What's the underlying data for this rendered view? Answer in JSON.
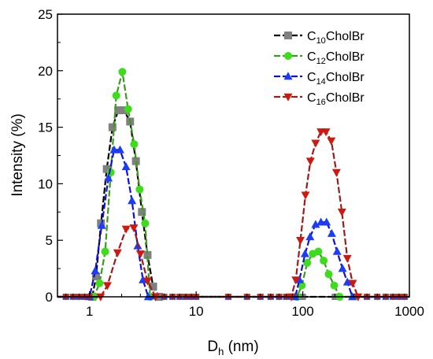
{
  "chart_data": {
    "type": "line",
    "xscale": "log",
    "xlim": [
      0.5,
      1000
    ],
    "ylim": [
      0,
      25
    ],
    "xticks": [
      1,
      10,
      100,
      1000
    ],
    "xtick_labels": [
      "1",
      "10",
      "100",
      "1000"
    ],
    "yticks": [
      0,
      5,
      10,
      15,
      20,
      25
    ],
    "ytick_labels": [
      "0",
      "5",
      "10",
      "15",
      "20",
      "25"
    ],
    "xlabel": {
      "main": "D",
      "sub": "h",
      "rest": " (nm)"
    },
    "ylabel": "Intensity (%)",
    "legend_position": "top-right",
    "grid": false,
    "series": [
      {
        "name": {
          "main": "C",
          "sub": "10",
          "rest": "CholBr"
        },
        "color": "#000000",
        "marker_color": "#808080",
        "marker": "square",
        "points": [
          [
            0.5,
            0
          ],
          [
            1.06,
            0
          ],
          [
            1.15,
            1.8
          ],
          [
            1.28,
            6.5
          ],
          [
            1.45,
            11.3
          ],
          [
            1.64,
            15.0
          ],
          [
            1.86,
            16.5
          ],
          [
            2.1,
            16.5
          ],
          [
            2.4,
            15.5
          ],
          [
            2.72,
            12.0
          ],
          [
            3.1,
            7.5
          ],
          [
            3.5,
            3.7
          ],
          [
            3.95,
            0.9
          ],
          [
            4.5,
            0
          ],
          [
            1000,
            0
          ]
        ]
      },
      {
        "name": {
          "main": "C",
          "sub": "12",
          "rest": "CholBr"
        },
        "color": "#3a9b1f",
        "marker_color": "#3ddc1c",
        "marker": "circle",
        "points": [
          [
            0.5,
            0
          ],
          [
            1.1,
            0
          ],
          [
            1.24,
            1.2
          ],
          [
            1.4,
            4.0
          ],
          [
            1.58,
            11.0
          ],
          [
            1.78,
            17.8
          ],
          [
            2.03,
            19.9
          ],
          [
            2.3,
            16.6
          ],
          [
            2.62,
            13.5
          ],
          [
            2.95,
            9.5
          ],
          [
            3.32,
            6.5
          ],
          [
            3.7,
            0
          ],
          [
            88,
            0
          ],
          [
            98,
            1.0
          ],
          [
            110,
            3.0
          ],
          [
            124,
            3.8
          ],
          [
            140,
            4.0
          ],
          [
            157,
            3.2
          ],
          [
            175,
            2.0
          ],
          [
            197,
            1.0
          ],
          [
            222,
            0
          ],
          [
            1000,
            0
          ]
        ]
      },
      {
        "name": {
          "main": "C",
          "sub": "14",
          "rest": "CholBr"
        },
        "color": "#1111cc",
        "marker_color": "#1c3cf5",
        "marker": "triangle-up",
        "points": [
          [
            0.5,
            0
          ],
          [
            1.0,
            0
          ],
          [
            1.13,
            2.3
          ],
          [
            1.3,
            6.3
          ],
          [
            1.5,
            10.5
          ],
          [
            1.7,
            13.0
          ],
          [
            1.93,
            13.0
          ],
          [
            2.2,
            11.5
          ],
          [
            2.5,
            8.5
          ],
          [
            2.83,
            4.5
          ],
          [
            3.17,
            1.5
          ],
          [
            3.55,
            0
          ],
          [
            85,
            0
          ],
          [
            93,
            1.5
          ],
          [
            105,
            3.8
          ],
          [
            117,
            5.3
          ],
          [
            132,
            6.4
          ],
          [
            148,
            6.6
          ],
          [
            167,
            6.6
          ],
          [
            187,
            5.6
          ],
          [
            210,
            4.0
          ],
          [
            236,
            2.5
          ],
          [
            262,
            1.3
          ],
          [
            292,
            0
          ],
          [
            1000,
            0
          ]
        ]
      },
      {
        "name": {
          "main": "C",
          "sub": "16",
          "rest": "CholBr"
        },
        "color": "#9b1c1c",
        "marker_color": "#cc1a12",
        "marker": "triangle-down",
        "points": [
          [
            0.5,
            0
          ],
          [
            1.27,
            0
          ],
          [
            1.47,
            1.0
          ],
          [
            1.83,
            3.9
          ],
          [
            2.2,
            6.0
          ],
          [
            2.6,
            6.1
          ],
          [
            3.0,
            3.8
          ],
          [
            3.5,
            1.4
          ],
          [
            4.15,
            0
          ],
          [
            78,
            0
          ],
          [
            86,
            1.5
          ],
          [
            95,
            5.0
          ],
          [
            106,
            9.0
          ],
          [
            118,
            12.0
          ],
          [
            132,
            13.6
          ],
          [
            148,
            14.6
          ],
          [
            165,
            14.6
          ],
          [
            185,
            13.8
          ],
          [
            207,
            11.0
          ],
          [
            233,
            7.5
          ],
          [
            262,
            3.4
          ],
          [
            294,
            1.2
          ],
          [
            330,
            0
          ],
          [
            1000,
            0
          ]
        ]
      }
    ]
  }
}
